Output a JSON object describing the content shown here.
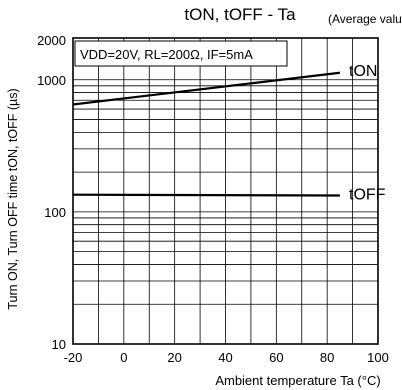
{
  "chart_data": {
    "type": "line",
    "title_main": "tON, tOFF - Ta",
    "title_note": "(Average value)",
    "xlabel": "Ambient temperature Ta (°C)",
    "ylabel": "Turn ON, Turn OFF time tON, tOFF (µs)",
    "conditions": "VDD=20V, RL=200Ω, IF=5mA",
    "xlim": [
      -20,
      100
    ],
    "ylim": [
      10,
      2000
    ],
    "yscale": "log",
    "grid": true,
    "x_ticks": [
      -20,
      0,
      20,
      40,
      60,
      80,
      100
    ],
    "y_ticks": [
      10,
      100,
      1000,
      2000
    ],
    "series": [
      {
        "name": "tON",
        "x": [
          -20,
          85
        ],
        "y": [
          650,
          1130
        ]
      },
      {
        "name": "tOFF",
        "x": [
          -20,
          85
        ],
        "y": [
          135,
          133
        ]
      }
    ]
  }
}
